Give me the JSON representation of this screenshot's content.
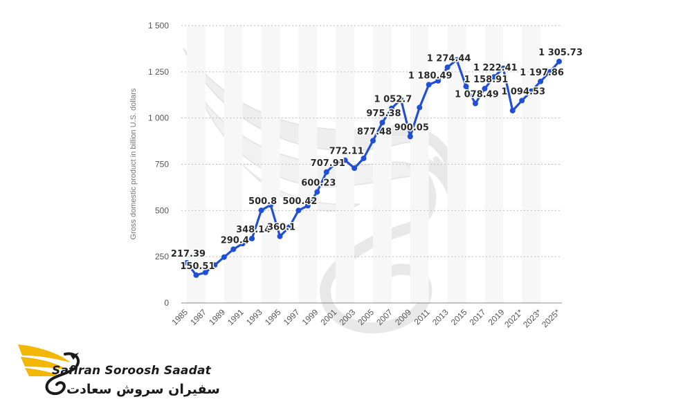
{
  "brand": {
    "name_en": "Safiran Soroosh Saadat",
    "name_fa": "سفیران سروش سعادت",
    "accent_color": "#f2b705"
  },
  "watermark_icon": "stylized-bird-s-logo-icon",
  "chart_data": {
    "type": "line",
    "title": "",
    "xlabel": "",
    "ylabel": "Gross domestic product in billion U.S. dollars",
    "ylim": [
      0,
      1500
    ],
    "yticks": [
      0,
      250,
      500,
      750,
      1000,
      1250,
      1500
    ],
    "ytick_labels": [
      "0",
      "250",
      "500",
      "750",
      "1 000",
      "1 250",
      "1 500"
    ],
    "grid": "horizontal-dotted",
    "x_tick_labels": [
      "1985",
      "1987",
      "1989",
      "1991",
      "1993",
      "1995",
      "1997",
      "1999",
      "2001",
      "2003",
      "2005",
      "2007",
      "2009",
      "2011",
      "2013",
      "2015",
      "2017",
      "2019",
      "2021*",
      "2023*",
      "2025*"
    ],
    "line_color": "#1f4fd6",
    "series": [
      {
        "x": [
          1985,
          1986,
          1987,
          1988,
          1989,
          1990,
          1991,
          1992,
          1993,
          1994,
          1995,
          1996,
          1997,
          1998,
          1999,
          2000,
          2001,
          2002,
          2003,
          2004,
          2005,
          2006,
          2007,
          2008,
          2009,
          2010,
          2011,
          2012,
          2013,
          2014,
          2015,
          2016,
          2017,
          2018,
          2019,
          2020,
          2021,
          2022,
          2023,
          2024,
          2025
        ],
        "values": [
          217.39,
          150.51,
          165,
          205,
          248,
          290.4,
          321,
          348.14,
          500.8,
          530,
          360.1,
          410,
          500.42,
          526,
          600.23,
          707.91,
          757,
          772.11,
          729,
          782,
          877.48,
          975.38,
          1052.7,
          1101,
          900.05,
          1057,
          1180.49,
          1201,
          1274.44,
          1315,
          1171,
          1078.49,
          1158.91,
          1222.41,
          1269,
          1040,
          1094.53,
          1145,
          1197.86,
          1250,
          1305.73
        ]
      }
    ],
    "data_labels": [
      {
        "x": 1985,
        "text": "217.39"
      },
      {
        "x": 1986,
        "text": "150.51"
      },
      {
        "x": 1990,
        "text": "290.4"
      },
      {
        "x": 1992,
        "text": "348.14"
      },
      {
        "x": 1993,
        "text": "500.8"
      },
      {
        "x": 1995,
        "text": "360.1"
      },
      {
        "x": 1997,
        "text": "500.42"
      },
      {
        "x": 1999,
        "text": "600.23"
      },
      {
        "x": 2000,
        "text": "707.91"
      },
      {
        "x": 2002,
        "text": "772.11"
      },
      {
        "x": 2005,
        "text": "877.48"
      },
      {
        "x": 2006,
        "text": "975.38"
      },
      {
        "x": 2007,
        "text": "1 052.7"
      },
      {
        "x": 2009,
        "text": "900.05"
      },
      {
        "x": 2011,
        "text": "1 180.49"
      },
      {
        "x": 2013,
        "text": "1 274.44"
      },
      {
        "x": 2016,
        "text": "1 078.49"
      },
      {
        "x": 2017,
        "text": "1 158.91"
      },
      {
        "x": 2018,
        "text": "1 222.41"
      },
      {
        "x": 2021,
        "text": "1 094.53"
      },
      {
        "x": 2023,
        "text": "1 197.86"
      },
      {
        "x": 2025,
        "text": "1 305.73"
      }
    ]
  }
}
